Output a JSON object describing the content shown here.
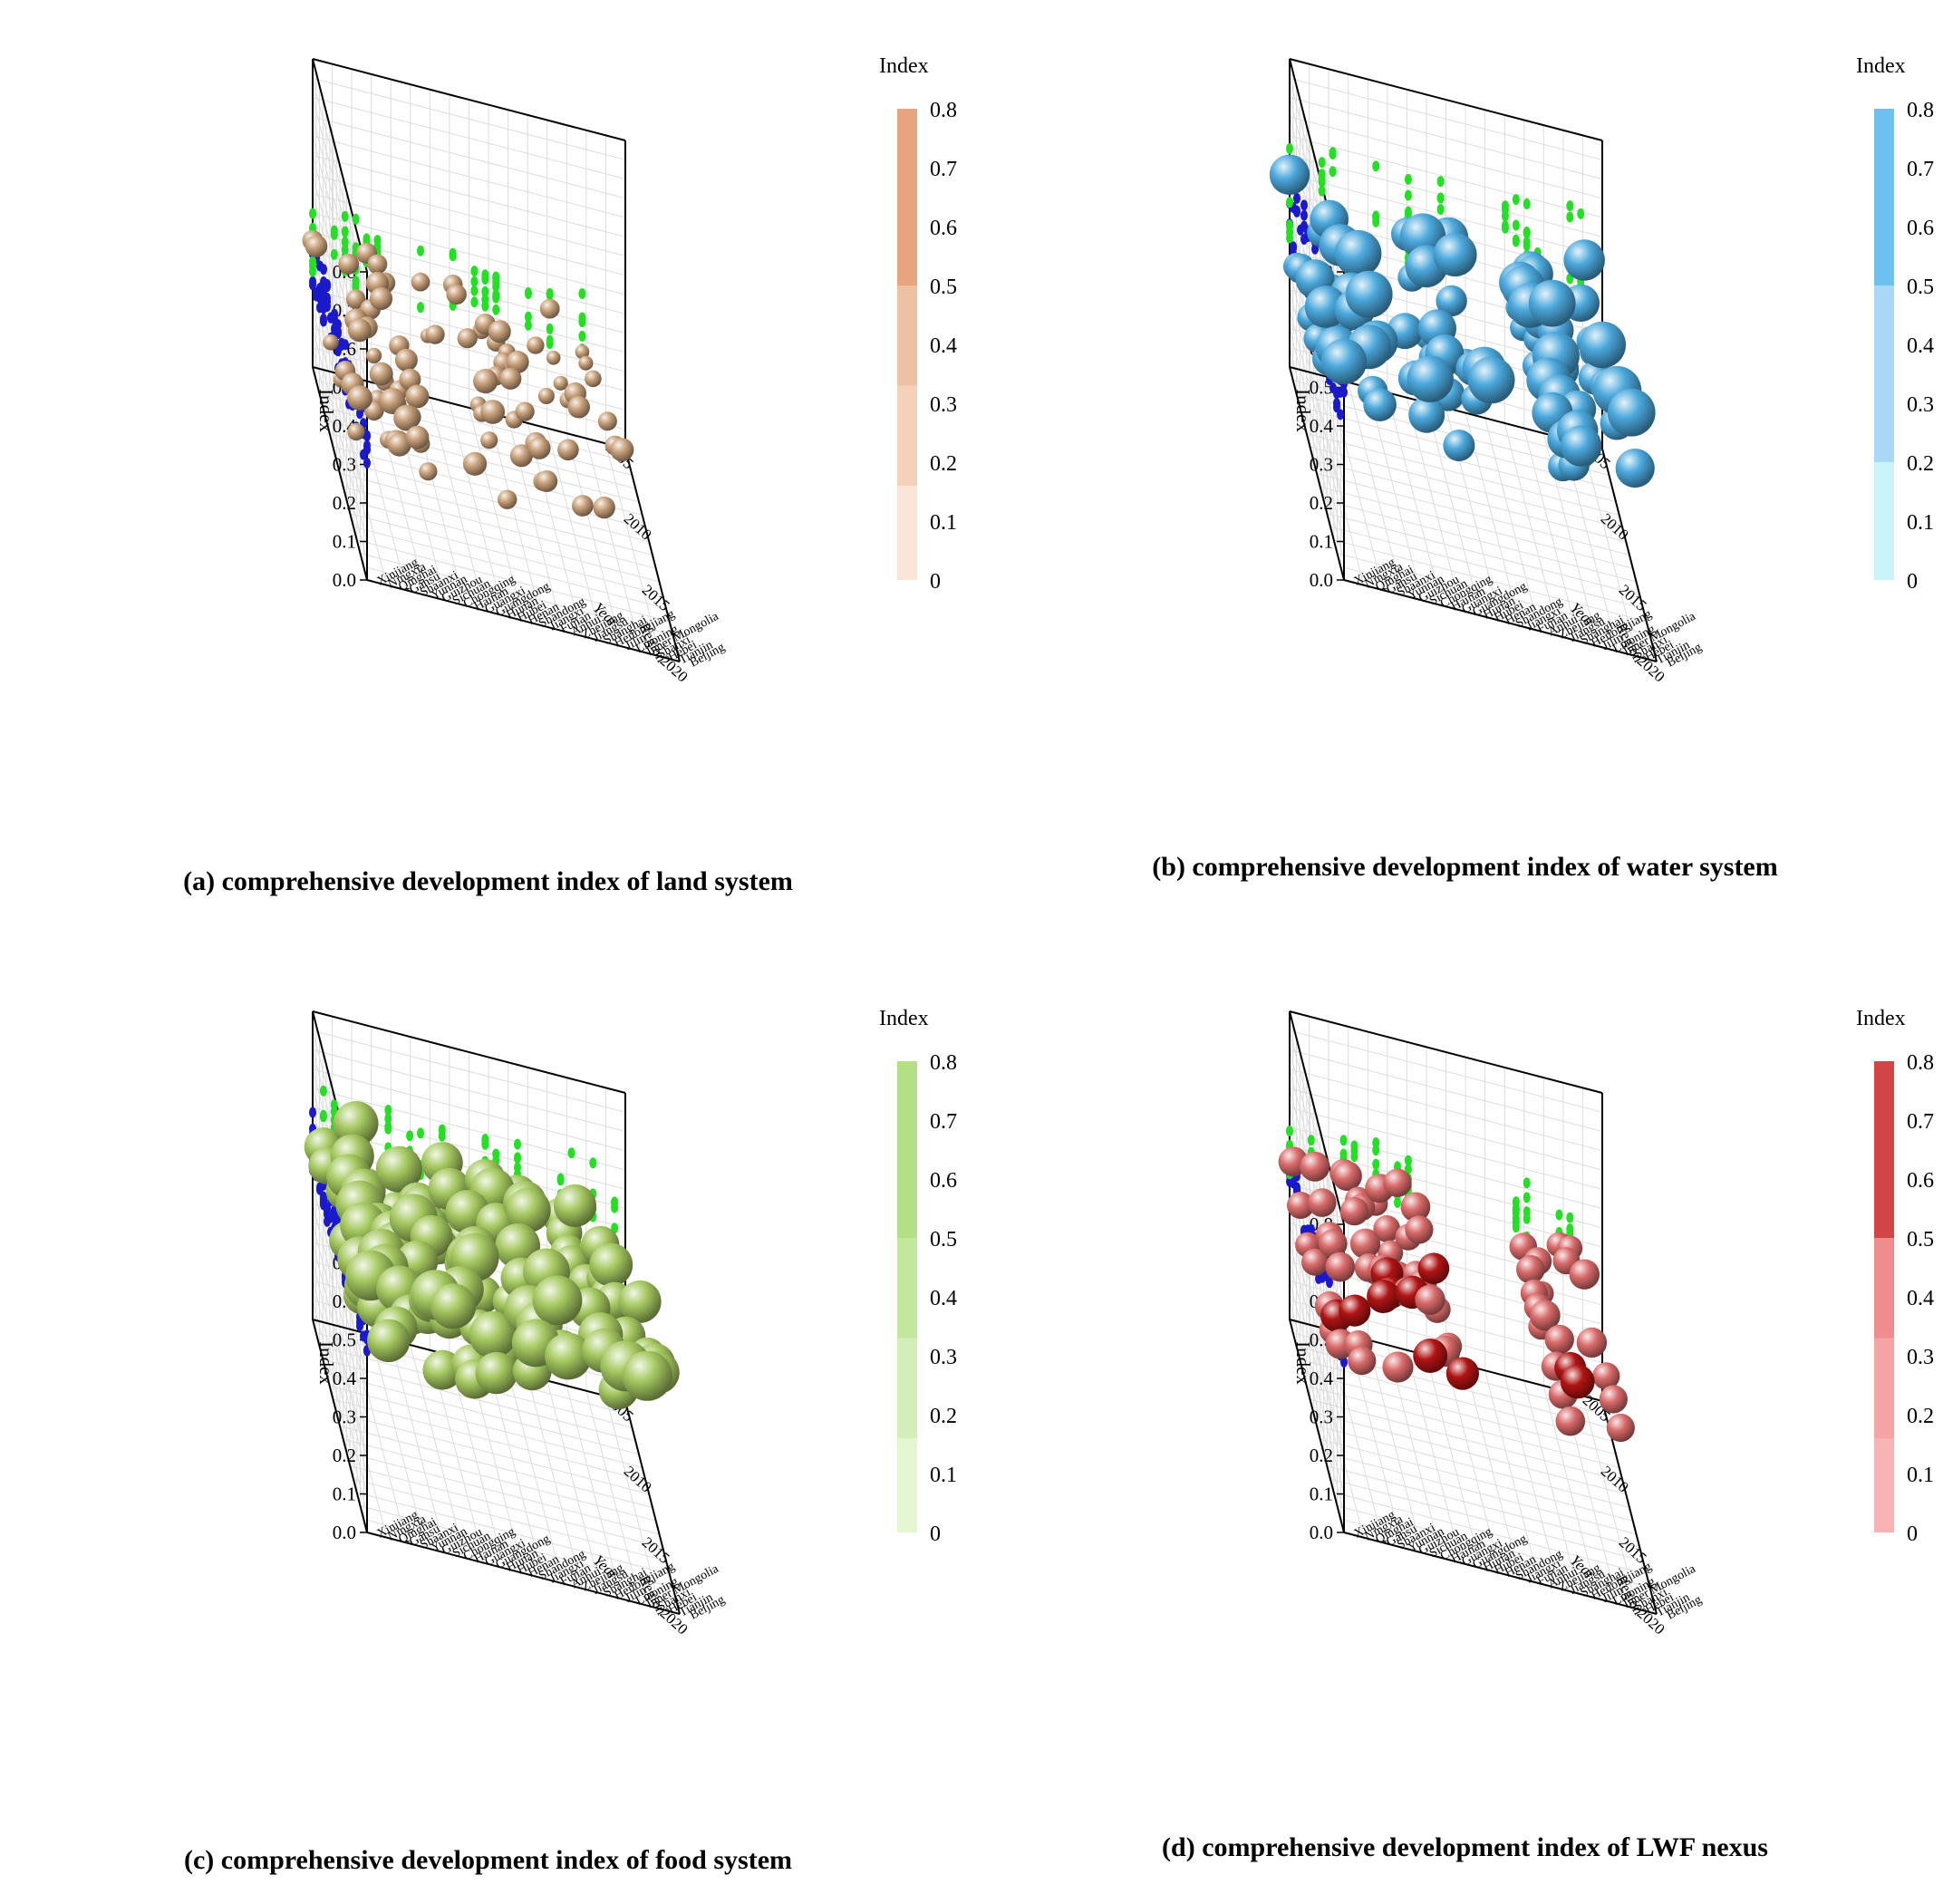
{
  "axes": {
    "y_label": "Index",
    "y_ticks": [
      "0.0",
      "0.1",
      "0.2",
      "0.3",
      "0.4",
      "0.5",
      "0.6",
      "0.7",
      "0.8"
    ],
    "x_label": "Year",
    "x_ticks": [
      "2005",
      "2010",
      "2015",
      "2020"
    ],
    "region_label": "Region",
    "regions": [
      "Beijing",
      "Tianjin",
      "Hebei",
      "Shanxi",
      "Inner Mongolia",
      "Liaoning",
      "Jilin",
      "Heilongjiang",
      "Shanghai",
      "Jiangsu",
      "Zhejiang",
      "Anhui",
      "Fujian",
      "Jiangxi",
      "Shandong",
      "Henan",
      "Hubei",
      "Hunan",
      "Guangdong",
      "Guangxi",
      "Hainan",
      "Chongqing",
      "Sichuan",
      "Guizhou",
      "Yunnan",
      "Shaanxi",
      "Gansu",
      "Qinghai",
      "Ningxia",
      "Xinjiang"
    ]
  },
  "colors": {
    "projection_back": "#1a1acc",
    "projection_side": "#22e022"
  },
  "legend": {
    "title": "Index",
    "ticks": [
      "0",
      "0.1",
      "0.2",
      "0.3",
      "0.4",
      "0.5",
      "0.6",
      "0.7",
      "0.8"
    ]
  },
  "chart_data": [
    {
      "id": "a",
      "type": "scatter",
      "caption": "(a) comprehensive development index of land system",
      "zlabel": "Index",
      "xlabel": "Year",
      "ylabel": "Region",
      "zlim": [
        0,
        0.8
      ],
      "xlim": [
        2005,
        2020
      ],
      "bands": [
        {
          "range": [
            0,
            0.16
          ],
          "color": "#fbe5d9"
        },
        {
          "range": [
            0.16,
            0.33
          ],
          "color": "#f5d1bb"
        },
        {
          "range": [
            0.33,
            0.5
          ],
          "color": "#efc1a3"
        },
        {
          "range": [
            0.5,
            0.8
          ],
          "color": "#e6a57e"
        }
      ],
      "ball_color": "#c8a07a",
      "index_center": 0.32,
      "index_spread": 0.07,
      "base_radius": 0.9,
      "seed": 11
    },
    {
      "id": "b",
      "type": "scatter",
      "caption": "(b) comprehensive development index of water system",
      "zlabel": "Index",
      "xlabel": "Year",
      "ylabel": "Region",
      "zlim": [
        0,
        0.8
      ],
      "xlim": [
        2005,
        2020
      ],
      "bands": [
        {
          "range": [
            0,
            0.2
          ],
          "color": "#c9f4f8"
        },
        {
          "range": [
            0.2,
            0.5
          ],
          "color": "#a8d8f5"
        },
        {
          "range": [
            0.5,
            0.8
          ],
          "color": "#6cc1ee"
        }
      ],
      "ball_color": "#4ba8dc",
      "index_center": 0.47,
      "index_spread": 0.12,
      "base_radius": 1.15,
      "seed": 23
    },
    {
      "id": "c",
      "type": "scatter",
      "caption": "(c) comprehensive development index of food system",
      "zlabel": "Index",
      "xlabel": "Year",
      "ylabel": "Region",
      "zlim": [
        0,
        0.8
      ],
      "xlim": [
        2005,
        2020
      ],
      "bands": [
        {
          "range": [
            0,
            0.16
          ],
          "color": "#e5f6d3"
        },
        {
          "range": [
            0.16,
            0.33
          ],
          "color": "#d3efb7"
        },
        {
          "range": [
            0.33,
            0.5
          ],
          "color": "#c2e89d"
        },
        {
          "range": [
            0.5,
            0.8
          ],
          "color": "#b3e087"
        }
      ],
      "ball_color": "#a5c860",
      "index_center": 0.5,
      "index_spread": 0.08,
      "base_radius": 1.2,
      "seed": 37
    },
    {
      "id": "d",
      "type": "scatter",
      "caption": "(d) comprehensive development index of LWF nexus",
      "zlabel": "Index",
      "xlabel": "Year",
      "ylabel": "Region",
      "zlim": [
        0,
        0.8
      ],
      "xlim": [
        2005,
        2020
      ],
      "bands": [
        {
          "range": [
            0,
            0.16
          ],
          "color": "#f8b4b4"
        },
        {
          "range": [
            0.16,
            0.33
          ],
          "color": "#f5a3a3"
        },
        {
          "range": [
            0.33,
            0.5
          ],
          "color": "#f08c8c"
        },
        {
          "range": [
            0.5,
            0.8
          ],
          "color": "#d24545"
        }
      ],
      "ball_color": "#d96a6a",
      "ball_color_high": "#b01414",
      "index_center": 0.44,
      "index_spread": 0.05,
      "base_radius": 0.95,
      "seed": 53
    }
  ]
}
